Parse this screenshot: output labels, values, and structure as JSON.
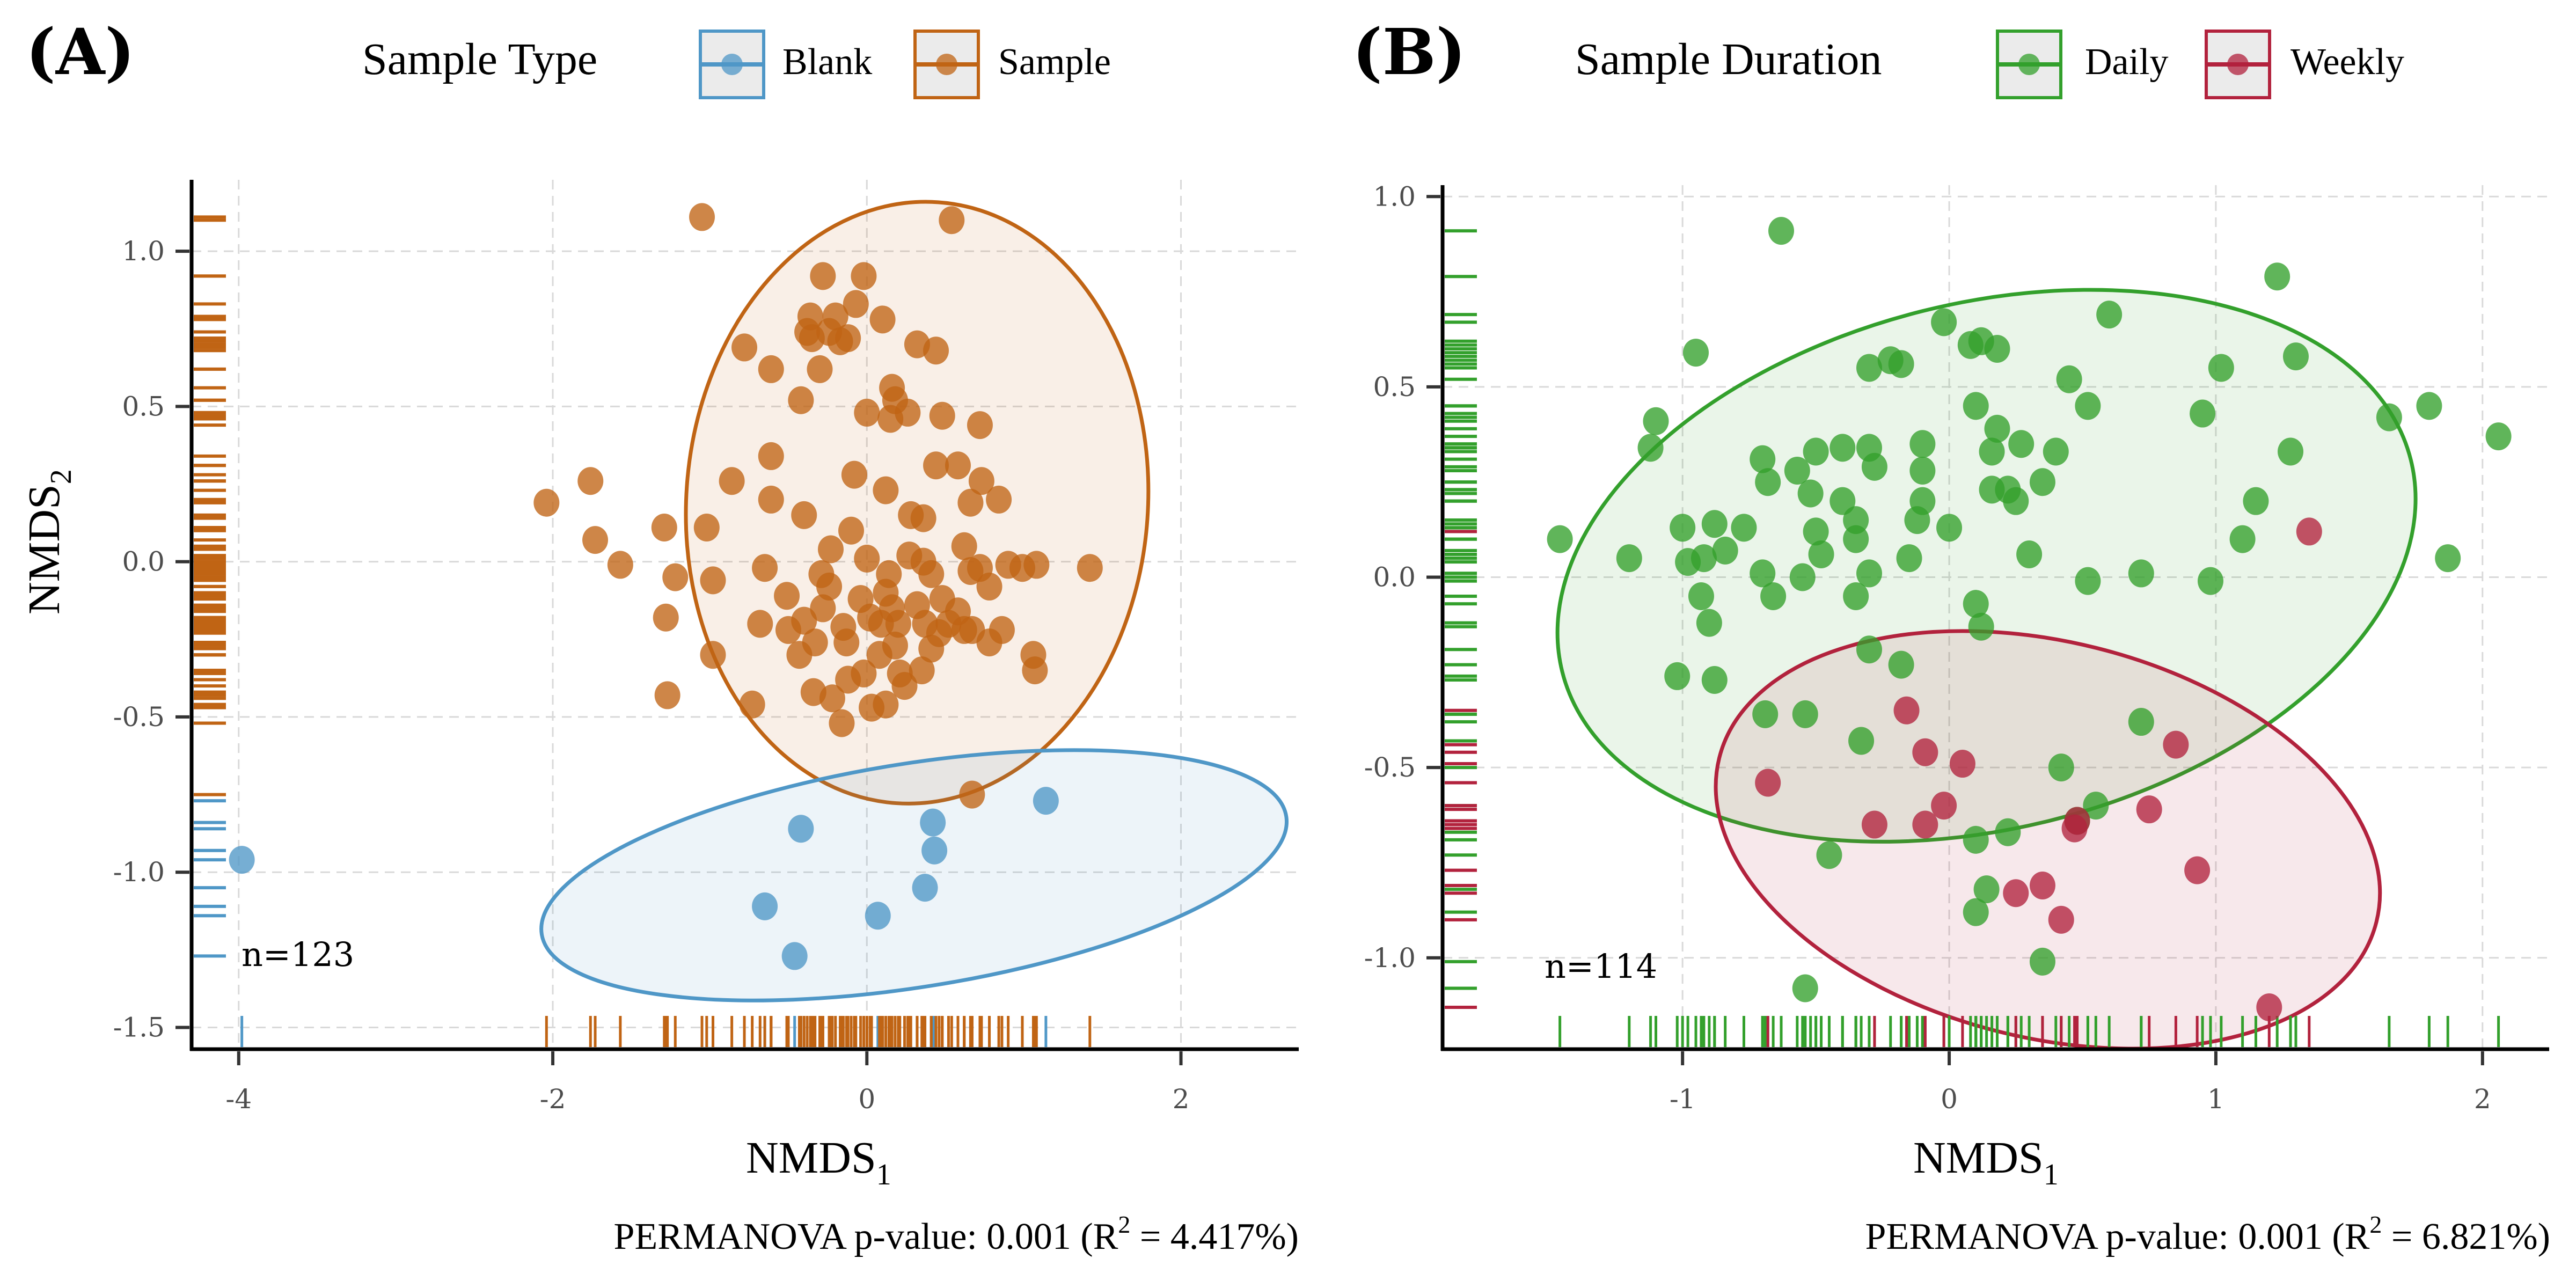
{
  "chart_data": [
    {
      "type": "scatter",
      "panel_label": "(A)",
      "legend": {
        "title": "Sample Type",
        "placement": "top",
        "entries": [
          {
            "label": "Blank",
            "color": "#4f97c7"
          },
          {
            "label": "Sample",
            "color": "#c06414"
          }
        ]
      },
      "xlabel": "NMDS",
      "xlabel_sub": "1",
      "ylabel": "NMDS",
      "ylabel_sub": "2",
      "xlim": [
        -4.3,
        2.75
      ],
      "ylim": [
        -1.57,
        1.23
      ],
      "xticks": [
        -4,
        -2,
        0,
        2
      ],
      "xtick_labels": [
        "-4",
        "-2",
        "0",
        "2"
      ],
      "yticks": [
        1.0,
        0.5,
        0.0,
        -0.5,
        -1.0,
        -1.5
      ],
      "ytick_labels": [
        "1.0",
        "0.5",
        "0.0",
        "-0.5",
        "-1.0",
        "-1.5"
      ],
      "grid": true,
      "annotation": "n=123",
      "caption": {
        "prefix": "PERMANOVA p-value: 0.001 (R",
        "sup": "2",
        "suffix": " = 4.417%)"
      },
      "rug": true,
      "ellipses": [
        {
          "group": "Sample",
          "cx": 0.32,
          "cy": 0.19,
          "rx": 1.47,
          "ry": 0.97,
          "angle_deg": -4
        },
        {
          "group": "Blank",
          "cx": 0.3,
          "cy": -1.01,
          "rx": 2.4,
          "ry": 0.36,
          "angle_deg": 9
        }
      ],
      "series": [
        {
          "name": "Blank",
          "color": "#4f97c7",
          "points": [
            [
              -3.98,
              -0.96
            ],
            [
              -0.42,
              -0.86
            ],
            [
              0.42,
              -0.84
            ],
            [
              0.43,
              -0.93
            ],
            [
              1.14,
              -0.77
            ],
            [
              -0.65,
              -1.11
            ],
            [
              0.37,
              -1.05
            ],
            [
              0.07,
              -1.14
            ],
            [
              -0.46,
              -1.27
            ]
          ]
        },
        {
          "name": "Sample",
          "color": "#c06414",
          "points": [
            [
              -1.05,
              1.11
            ],
            [
              0.54,
              1.1
            ],
            [
              -0.28,
              0.92
            ],
            [
              -0.02,
              0.92
            ],
            [
              -0.07,
              0.83
            ],
            [
              0.1,
              0.78
            ],
            [
              -0.36,
              0.79
            ],
            [
              -0.38,
              0.74
            ],
            [
              -0.2,
              0.79
            ],
            [
              -0.24,
              0.74
            ],
            [
              -0.35,
              0.72
            ],
            [
              -0.12,
              0.72
            ],
            [
              -0.17,
              0.71
            ],
            [
              0.32,
              0.7
            ],
            [
              0.44,
              0.68
            ],
            [
              -0.78,
              0.69
            ],
            [
              -0.61,
              0.62
            ],
            [
              -0.3,
              0.62
            ],
            [
              -0.42,
              0.52
            ],
            [
              0.16,
              0.56
            ],
            [
              0.26,
              0.48
            ],
            [
              0.18,
              0.52
            ],
            [
              0.0,
              0.48
            ],
            [
              0.15,
              0.46
            ],
            [
              0.48,
              0.47
            ],
            [
              0.72,
              0.44
            ],
            [
              -0.61,
              0.34
            ],
            [
              0.44,
              0.31
            ],
            [
              0.58,
              0.31
            ],
            [
              -2.04,
              0.19
            ],
            [
              -1.76,
              0.26
            ],
            [
              -1.73,
              0.07
            ],
            [
              -1.57,
              -0.01
            ],
            [
              -1.29,
              0.11
            ],
            [
              -1.02,
              0.11
            ],
            [
              -0.86,
              0.26
            ],
            [
              -0.61,
              0.2
            ],
            [
              -0.4,
              0.15
            ],
            [
              0.12,
              0.23
            ],
            [
              -0.08,
              0.28
            ],
            [
              0.28,
              0.15
            ],
            [
              0.36,
              0.14
            ],
            [
              0.73,
              0.26
            ],
            [
              0.84,
              0.2
            ],
            [
              0.66,
              0.19
            ],
            [
              -0.1,
              0.1
            ],
            [
              -0.23,
              0.04
            ],
            [
              -0.29,
              -0.04
            ],
            [
              0.0,
              0.01
            ],
            [
              0.27,
              0.02
            ],
            [
              0.14,
              -0.04
            ],
            [
              0.36,
              0.0
            ],
            [
              0.41,
              -0.04
            ],
            [
              0.62,
              0.05
            ],
            [
              0.66,
              -0.03
            ],
            [
              0.72,
              -0.02
            ],
            [
              0.78,
              -0.08
            ],
            [
              0.9,
              -0.01
            ],
            [
              0.99,
              -0.02
            ],
            [
              1.08,
              -0.01
            ],
            [
              1.42,
              -0.02
            ],
            [
              -1.22,
              -0.05
            ],
            [
              -0.98,
              -0.06
            ],
            [
              -0.65,
              -0.02
            ],
            [
              -0.51,
              -0.11
            ],
            [
              -0.28,
              -0.15
            ],
            [
              -0.24,
              -0.08
            ],
            [
              -0.4,
              -0.19
            ],
            [
              -0.15,
              -0.21
            ],
            [
              -0.04,
              -0.12
            ],
            [
              0.02,
              -0.18
            ],
            [
              0.12,
              -0.1
            ],
            [
              0.16,
              -0.15
            ],
            [
              0.2,
              -0.2
            ],
            [
              0.32,
              -0.14
            ],
            [
              0.37,
              -0.2
            ],
            [
              0.48,
              -0.12
            ],
            [
              0.52,
              -0.2
            ],
            [
              0.58,
              -0.16
            ],
            [
              0.62,
              -0.22
            ],
            [
              0.67,
              -0.22
            ],
            [
              0.78,
              -0.26
            ],
            [
              0.86,
              -0.22
            ],
            [
              1.06,
              -0.3
            ],
            [
              1.07,
              -0.35
            ],
            [
              -1.28,
              -0.18
            ],
            [
              -0.98,
              -0.3
            ],
            [
              -0.68,
              -0.2
            ],
            [
              -0.5,
              -0.22
            ],
            [
              -0.43,
              -0.3
            ],
            [
              -0.33,
              -0.26
            ],
            [
              -0.13,
              -0.26
            ],
            [
              0.08,
              -0.3
            ],
            [
              0.21,
              -0.36
            ],
            [
              0.35,
              -0.35
            ],
            [
              0.09,
              -0.2
            ],
            [
              0.18,
              -0.27
            ],
            [
              0.41,
              -0.28
            ],
            [
              0.46,
              -0.23
            ],
            [
              -1.27,
              -0.43
            ],
            [
              -0.73,
              -0.46
            ],
            [
              -0.34,
              -0.42
            ],
            [
              -0.22,
              -0.44
            ],
            [
              -0.12,
              -0.38
            ],
            [
              0.03,
              -0.47
            ],
            [
              0.12,
              -0.46
            ],
            [
              -0.16,
              -0.52
            ],
            [
              -0.02,
              -0.36
            ],
            [
              0.24,
              -0.4
            ],
            [
              0.67,
              -0.75
            ]
          ]
        }
      ]
    },
    {
      "type": "scatter",
      "panel_label": "(B)",
      "legend": {
        "title": "Sample Duration",
        "placement": "top",
        "entries": [
          {
            "label": "Daily",
            "color": "#33a02c"
          },
          {
            "label": "Weekly",
            "color": "#b2223d"
          }
        ]
      },
      "xlabel": "NMDS",
      "xlabel_sub": "1",
      "ylabel": "",
      "xlim": [
        -1.9,
        2.25
      ],
      "ylim": [
        -1.24,
        1.03
      ],
      "xticks": [
        -1,
        0,
        1,
        2
      ],
      "xtick_labels": [
        "-1",
        "0",
        "1",
        "2"
      ],
      "yticks": [
        1.0,
        0.5,
        0.0,
        -0.5,
        -1.0
      ],
      "ytick_labels": [
        "1.0",
        "0.5",
        "0.0",
        "-0.5",
        "-1.0"
      ],
      "grid": true,
      "annotation": "n=114",
      "caption": {
        "prefix": "PERMANOVA p-value: 0.001 (R",
        "sup": "2",
        "suffix": " = 6.821%)"
      },
      "rug": true,
      "ellipses": [
        {
          "group": "Daily",
          "cx": 0.14,
          "cy": 0.03,
          "rx": 1.64,
          "ry": 0.69,
          "angle_deg": 14
        },
        {
          "group": "Weekly",
          "cx": 0.37,
          "cy": -0.69,
          "rx": 1.27,
          "ry": 0.52,
          "angle_deg": -14
        }
      ],
      "series": [
        {
          "name": "Daily",
          "color": "#33a02c",
          "points": [
            [
              -0.63,
              0.91
            ],
            [
              1.23,
              0.79
            ],
            [
              -0.95,
              0.59
            ],
            [
              1.3,
              0.58
            ],
            [
              -0.02,
              0.67
            ],
            [
              0.18,
              0.6
            ],
            [
              0.12,
              0.62
            ],
            [
              0.08,
              0.61
            ],
            [
              0.6,
              0.69
            ],
            [
              1.02,
              0.55
            ],
            [
              -0.3,
              0.55
            ],
            [
              -0.18,
              0.56
            ],
            [
              -0.22,
              0.57
            ],
            [
              0.45,
              0.52
            ],
            [
              0.52,
              0.45
            ],
            [
              -1.1,
              0.41
            ],
            [
              -1.12,
              0.34
            ],
            [
              0.1,
              0.45
            ],
            [
              0.18,
              0.39
            ],
            [
              0.27,
              0.35
            ],
            [
              0.4,
              0.33
            ],
            [
              0.16,
              0.33
            ],
            [
              0.95,
              0.43
            ],
            [
              1.65,
              0.42
            ],
            [
              1.8,
              0.45
            ],
            [
              2.06,
              0.37
            ],
            [
              1.28,
              0.33
            ],
            [
              -0.7,
              0.31
            ],
            [
              -0.68,
              0.25
            ],
            [
              -0.57,
              0.28
            ],
            [
              -0.5,
              0.33
            ],
            [
              -0.4,
              0.34
            ],
            [
              -0.3,
              0.34
            ],
            [
              -0.52,
              0.22
            ],
            [
              -0.4,
              0.2
            ],
            [
              -0.28,
              0.29
            ],
            [
              -0.1,
              0.35
            ],
            [
              -0.1,
              0.28
            ],
            [
              0.16,
              0.23
            ],
            [
              0.22,
              0.23
            ],
            [
              0.25,
              0.2
            ],
            [
              0.35,
              0.25
            ],
            [
              -0.88,
              0.14
            ],
            [
              -1.0,
              0.13
            ],
            [
              -0.77,
              0.13
            ],
            [
              -0.5,
              0.12
            ],
            [
              -0.35,
              0.15
            ],
            [
              -0.35,
              0.1
            ],
            [
              -0.12,
              0.15
            ],
            [
              0.0,
              0.13
            ],
            [
              -0.1,
              0.2
            ],
            [
              1.15,
              0.2
            ],
            [
              1.1,
              0.1
            ],
            [
              -1.46,
              0.1
            ],
            [
              -1.2,
              0.05
            ],
            [
              -0.98,
              0.04
            ],
            [
              -0.92,
              0.05
            ],
            [
              -0.84,
              0.07
            ],
            [
              -0.48,
              0.06
            ],
            [
              -0.7,
              0.01
            ],
            [
              -0.55,
              0.0
            ],
            [
              -0.3,
              0.01
            ],
            [
              -0.15,
              0.05
            ],
            [
              0.3,
              0.06
            ],
            [
              -0.93,
              -0.05
            ],
            [
              -0.66,
              -0.05
            ],
            [
              -0.9,
              -0.12
            ],
            [
              -0.35,
              -0.05
            ],
            [
              0.1,
              -0.07
            ],
            [
              0.12,
              -0.13
            ],
            [
              0.52,
              -0.01
            ],
            [
              0.72,
              0.01
            ],
            [
              0.98,
              -0.01
            ],
            [
              1.87,
              0.05
            ],
            [
              -1.02,
              -0.26
            ],
            [
              -0.88,
              -0.27
            ],
            [
              -0.3,
              -0.19
            ],
            [
              -0.18,
              -0.23
            ],
            [
              -0.69,
              -0.36
            ],
            [
              -0.54,
              -0.36
            ],
            [
              -0.33,
              -0.43
            ],
            [
              0.72,
              -0.38
            ],
            [
              0.42,
              -0.5
            ],
            [
              0.55,
              -0.6
            ],
            [
              0.48,
              -0.64
            ],
            [
              -0.45,
              -0.73
            ],
            [
              0.1,
              -0.69
            ],
            [
              0.22,
              -0.67
            ],
            [
              0.14,
              -0.82
            ],
            [
              0.1,
              -0.88
            ],
            [
              0.35,
              -1.01
            ],
            [
              -0.54,
              -1.08
            ]
          ]
        },
        {
          "name": "Weekly",
          "color": "#b2223d",
          "points": [
            [
              1.35,
              0.12
            ],
            [
              -0.16,
              -0.35
            ],
            [
              -0.09,
              -0.46
            ],
            [
              0.05,
              -0.49
            ],
            [
              0.85,
              -0.44
            ],
            [
              -0.68,
              -0.54
            ],
            [
              -0.28,
              -0.65
            ],
            [
              -0.09,
              -0.65
            ],
            [
              -0.02,
              -0.6
            ],
            [
              0.75,
              -0.61
            ],
            [
              0.48,
              -0.64
            ],
            [
              0.47,
              -0.66
            ],
            [
              0.25,
              -0.83
            ],
            [
              0.35,
              -0.81
            ],
            [
              0.42,
              -0.9
            ],
            [
              0.93,
              -0.77
            ],
            [
              1.2,
              -1.13
            ]
          ]
        }
      ]
    }
  ]
}
